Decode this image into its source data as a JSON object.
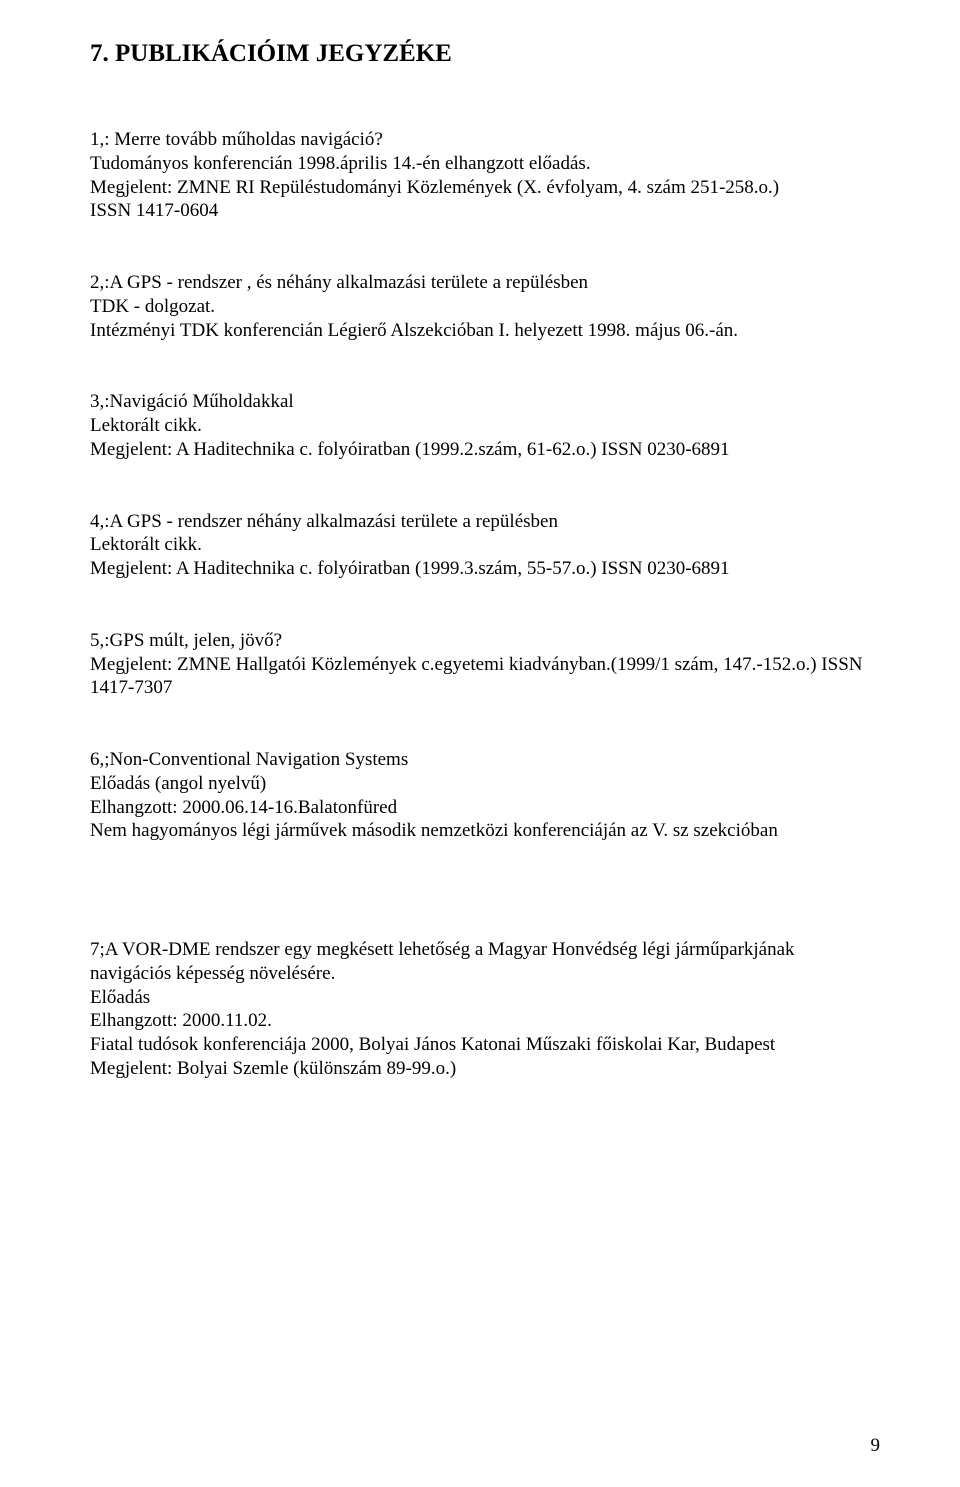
{
  "title": "7.  PUBLIKÁCIÓIM JEGYZÉKE",
  "entries": [
    {
      "lines": [
        "1,: Merre tovább műholdas navigáció?",
        "Tudományos konferencián 1998.április 14.-én elhangzott előadás.",
        "Megjelent: ZMNE RI Repüléstudományi Közlemények (X. évfolyam, 4. szám 251-258.o.)",
        "ISSN 1417-0604"
      ]
    },
    {
      "lines": [
        " 2,:A GPS - rendszer , és néhány alkalmazási területe a repülésben",
        "TDK - dolgozat.",
        "Intézményi TDK konferencián Légierő Alszekcióban I. helyezett 1998. május 06.-án."
      ]
    },
    {
      "lines": [
        "3,:Navigáció Műholdakkal",
        "Lektorált cikk.",
        "Megjelent: A Haditechnika c. folyóiratban (1999.2.szám, 61-62.o.) ISSN 0230-6891"
      ]
    },
    {
      "lines": [
        "4,:A GPS - rendszer néhány alkalmazási területe a repülésben",
        "Lektorált cikk.",
        "Megjelent: A Haditechnika c. folyóiratban (1999.3.szám, 55-57.o.) ISSN 0230-6891"
      ]
    },
    {
      "lines": [
        "5,:GPS múlt, jelen, jövő?",
        "Megjelent: ZMNE Hallgatói Közlemények c.egyetemi kiadványban.(1999/1 szám, 147.-152.o.) ISSN 1417-7307"
      ]
    },
    {
      "lines": [
        "6,;Non-Conventional Navigation  Systems",
        "Előadás (angol nyelvű)",
        "Elhangzott: 2000.06.14-16.Balatonfüred",
        "Nem hagyományos légi járművek második nemzetközi konferenciáján az V. sz szekcióban"
      ]
    },
    {
      "lines": [
        "7;A VOR-DME rendszer egy megkésett lehetőség a Magyar Honvédség légi járműparkjának navigációs képesség növelésére.",
        "Előadás",
        "Elhangzott: 2000.11.02.",
        "Fiatal tudósok konferenciája 2000, Bolyai János Katonai Műszaki főiskolai Kar, Budapest",
        "Megjelent: Bolyai Szemle (különszám 89-99.o.)"
      ],
      "extra_top_margin": true
    }
  ],
  "page_number": "9"
}
